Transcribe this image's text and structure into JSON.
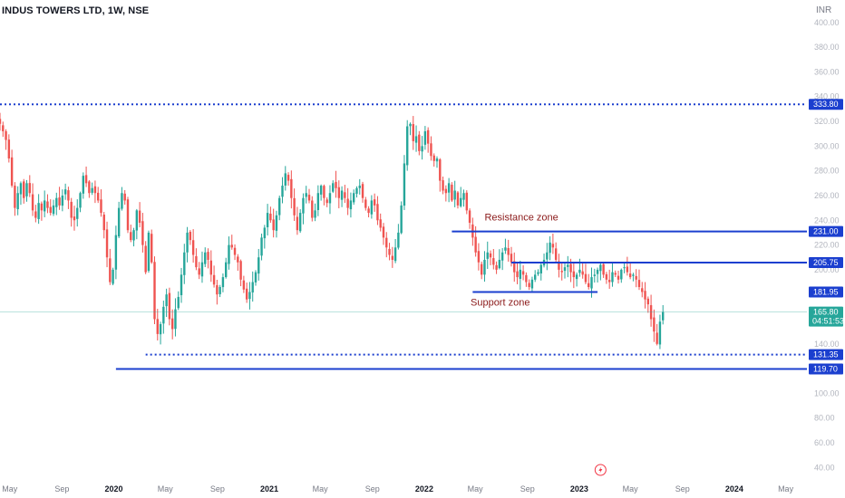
{
  "header": {
    "title": "INDUS TOWERS LTD, 1W, NSE",
    "currency": "INR"
  },
  "colors": {
    "up": "#26a69a",
    "down": "#ef5350",
    "level_line": "#1b3fcf",
    "price_tag": "#26a69a",
    "annotation_text": "#8b1a1a",
    "axis_text": "#b2b5be",
    "time_text": "#787b86"
  },
  "chart_data": {
    "type": "candlestick",
    "symbol": "INDUS TOWERS LTD",
    "interval": "1W",
    "exchange": "NSE",
    "ylim": [
      30,
      405
    ],
    "yticks": [
      "40.00",
      "60.00",
      "80.00",
      "100.00",
      "120.00",
      "140.00",
      "160.00",
      "180.00",
      "200.00",
      "220.00",
      "240.00",
      "260.00",
      "280.00",
      "300.00",
      "320.00",
      "340.00",
      "360.00",
      "380.00",
      "400.00"
    ],
    "xlim": [
      "2019-04-08",
      "2024-06-20"
    ],
    "xticks": [
      {
        "date": "2019-05-01",
        "label": "May",
        "bold": false
      },
      {
        "date": "2019-09-01",
        "label": "Sep",
        "bold": false
      },
      {
        "date": "2020-01-01",
        "label": "2020",
        "bold": true
      },
      {
        "date": "2020-05-01",
        "label": "May",
        "bold": false
      },
      {
        "date": "2020-09-01",
        "label": "Sep",
        "bold": false
      },
      {
        "date": "2021-01-01",
        "label": "2021",
        "bold": true
      },
      {
        "date": "2021-05-01",
        "label": "May",
        "bold": false
      },
      {
        "date": "2021-09-01",
        "label": "Sep",
        "bold": false
      },
      {
        "date": "2022-01-01",
        "label": "2022",
        "bold": true
      },
      {
        "date": "2022-05-01",
        "label": "May",
        "bold": false
      },
      {
        "date": "2022-09-01",
        "label": "Sep",
        "bold": false
      },
      {
        "date": "2023-01-01",
        "label": "2023",
        "bold": true
      },
      {
        "date": "2023-05-01",
        "label": "May",
        "bold": false
      },
      {
        "date": "2023-09-01",
        "label": "Sep",
        "bold": false
      },
      {
        "date": "2024-01-01",
        "label": "2024",
        "bold": true
      },
      {
        "date": "2024-05-01",
        "label": "May",
        "bold": false
      }
    ],
    "first_date": "2019-04-08",
    "closes": [
      318,
      312,
      305,
      290,
      268,
      250,
      262,
      270,
      258,
      270,
      262,
      248,
      242,
      254,
      248,
      256,
      250,
      246,
      252,
      258,
      252,
      260,
      265,
      256,
      242,
      240,
      250,
      262,
      276,
      270,
      262,
      266,
      262,
      256,
      246,
      232,
      210,
      190,
      200,
      228,
      250,
      262,
      256,
      232,
      224,
      232,
      248,
      238,
      220,
      198,
      230,
      206,
      160,
      148,
      156,
      170,
      180,
      160,
      152,
      168,
      178,
      196,
      214,
      230,
      224,
      212,
      202,
      196,
      206,
      214,
      208,
      196,
      188,
      180,
      186,
      194,
      206,
      220,
      218,
      212,
      206,
      192,
      184,
      176,
      182,
      190,
      198,
      210,
      226,
      234,
      246,
      240,
      232,
      244,
      258,
      268,
      278,
      272,
      258,
      244,
      232,
      246,
      258,
      262,
      256,
      242,
      248,
      262,
      268,
      258,
      254,
      262,
      270,
      266,
      258,
      264,
      258,
      250,
      256,
      262,
      266,
      268,
      258,
      250,
      246,
      256,
      252,
      240,
      234,
      226,
      218,
      212,
      208,
      218,
      230,
      252,
      286,
      316,
      318,
      304,
      308,
      296,
      300,
      312,
      302,
      292,
      288,
      290,
      272,
      264,
      262,
      270,
      256,
      264,
      252,
      258,
      262,
      248,
      238,
      226,
      214,
      206,
      196,
      208,
      214,
      210,
      204,
      200,
      208,
      214,
      218,
      212,
      206,
      198,
      194,
      200,
      196,
      190,
      186,
      192,
      196,
      198,
      204,
      208,
      214,
      222,
      218,
      208,
      200,
      198,
      202,
      204,
      198,
      194,
      196,
      200,
      196,
      190,
      186,
      194,
      196,
      200,
      204,
      196,
      192,
      190,
      198,
      196,
      192,
      200,
      202,
      198,
      194,
      196,
      192,
      186,
      182,
      176,
      172,
      160,
      150,
      140,
      158,
      165.8
    ],
    "levels": [
      {
        "value": "333.80",
        "style": "dotted",
        "start": "2019-04-08"
      },
      {
        "value": "231.00",
        "style": "solid",
        "start": "2022-03-07"
      },
      {
        "value": "205.75",
        "style": "solid",
        "start": "2022-07-25"
      },
      {
        "value": "181.95",
        "style": "solid",
        "start": "2022-04-25",
        "end": "2023-02-13"
      },
      {
        "value": "131.35",
        "style": "dotted",
        "start": "2020-03-16"
      },
      {
        "value": "119.70",
        "style": "solid",
        "start": "2020-01-06"
      }
    ],
    "last_price": {
      "value": "165.80",
      "countdown": "04:51:53"
    },
    "annotations": [
      {
        "text": "Resistance zone",
        "date": "2022-05-23",
        "y": 240
      },
      {
        "text": "Support zone",
        "date": "2022-04-20",
        "y": 171
      }
    ],
    "legend": "none",
    "grid": false
  }
}
